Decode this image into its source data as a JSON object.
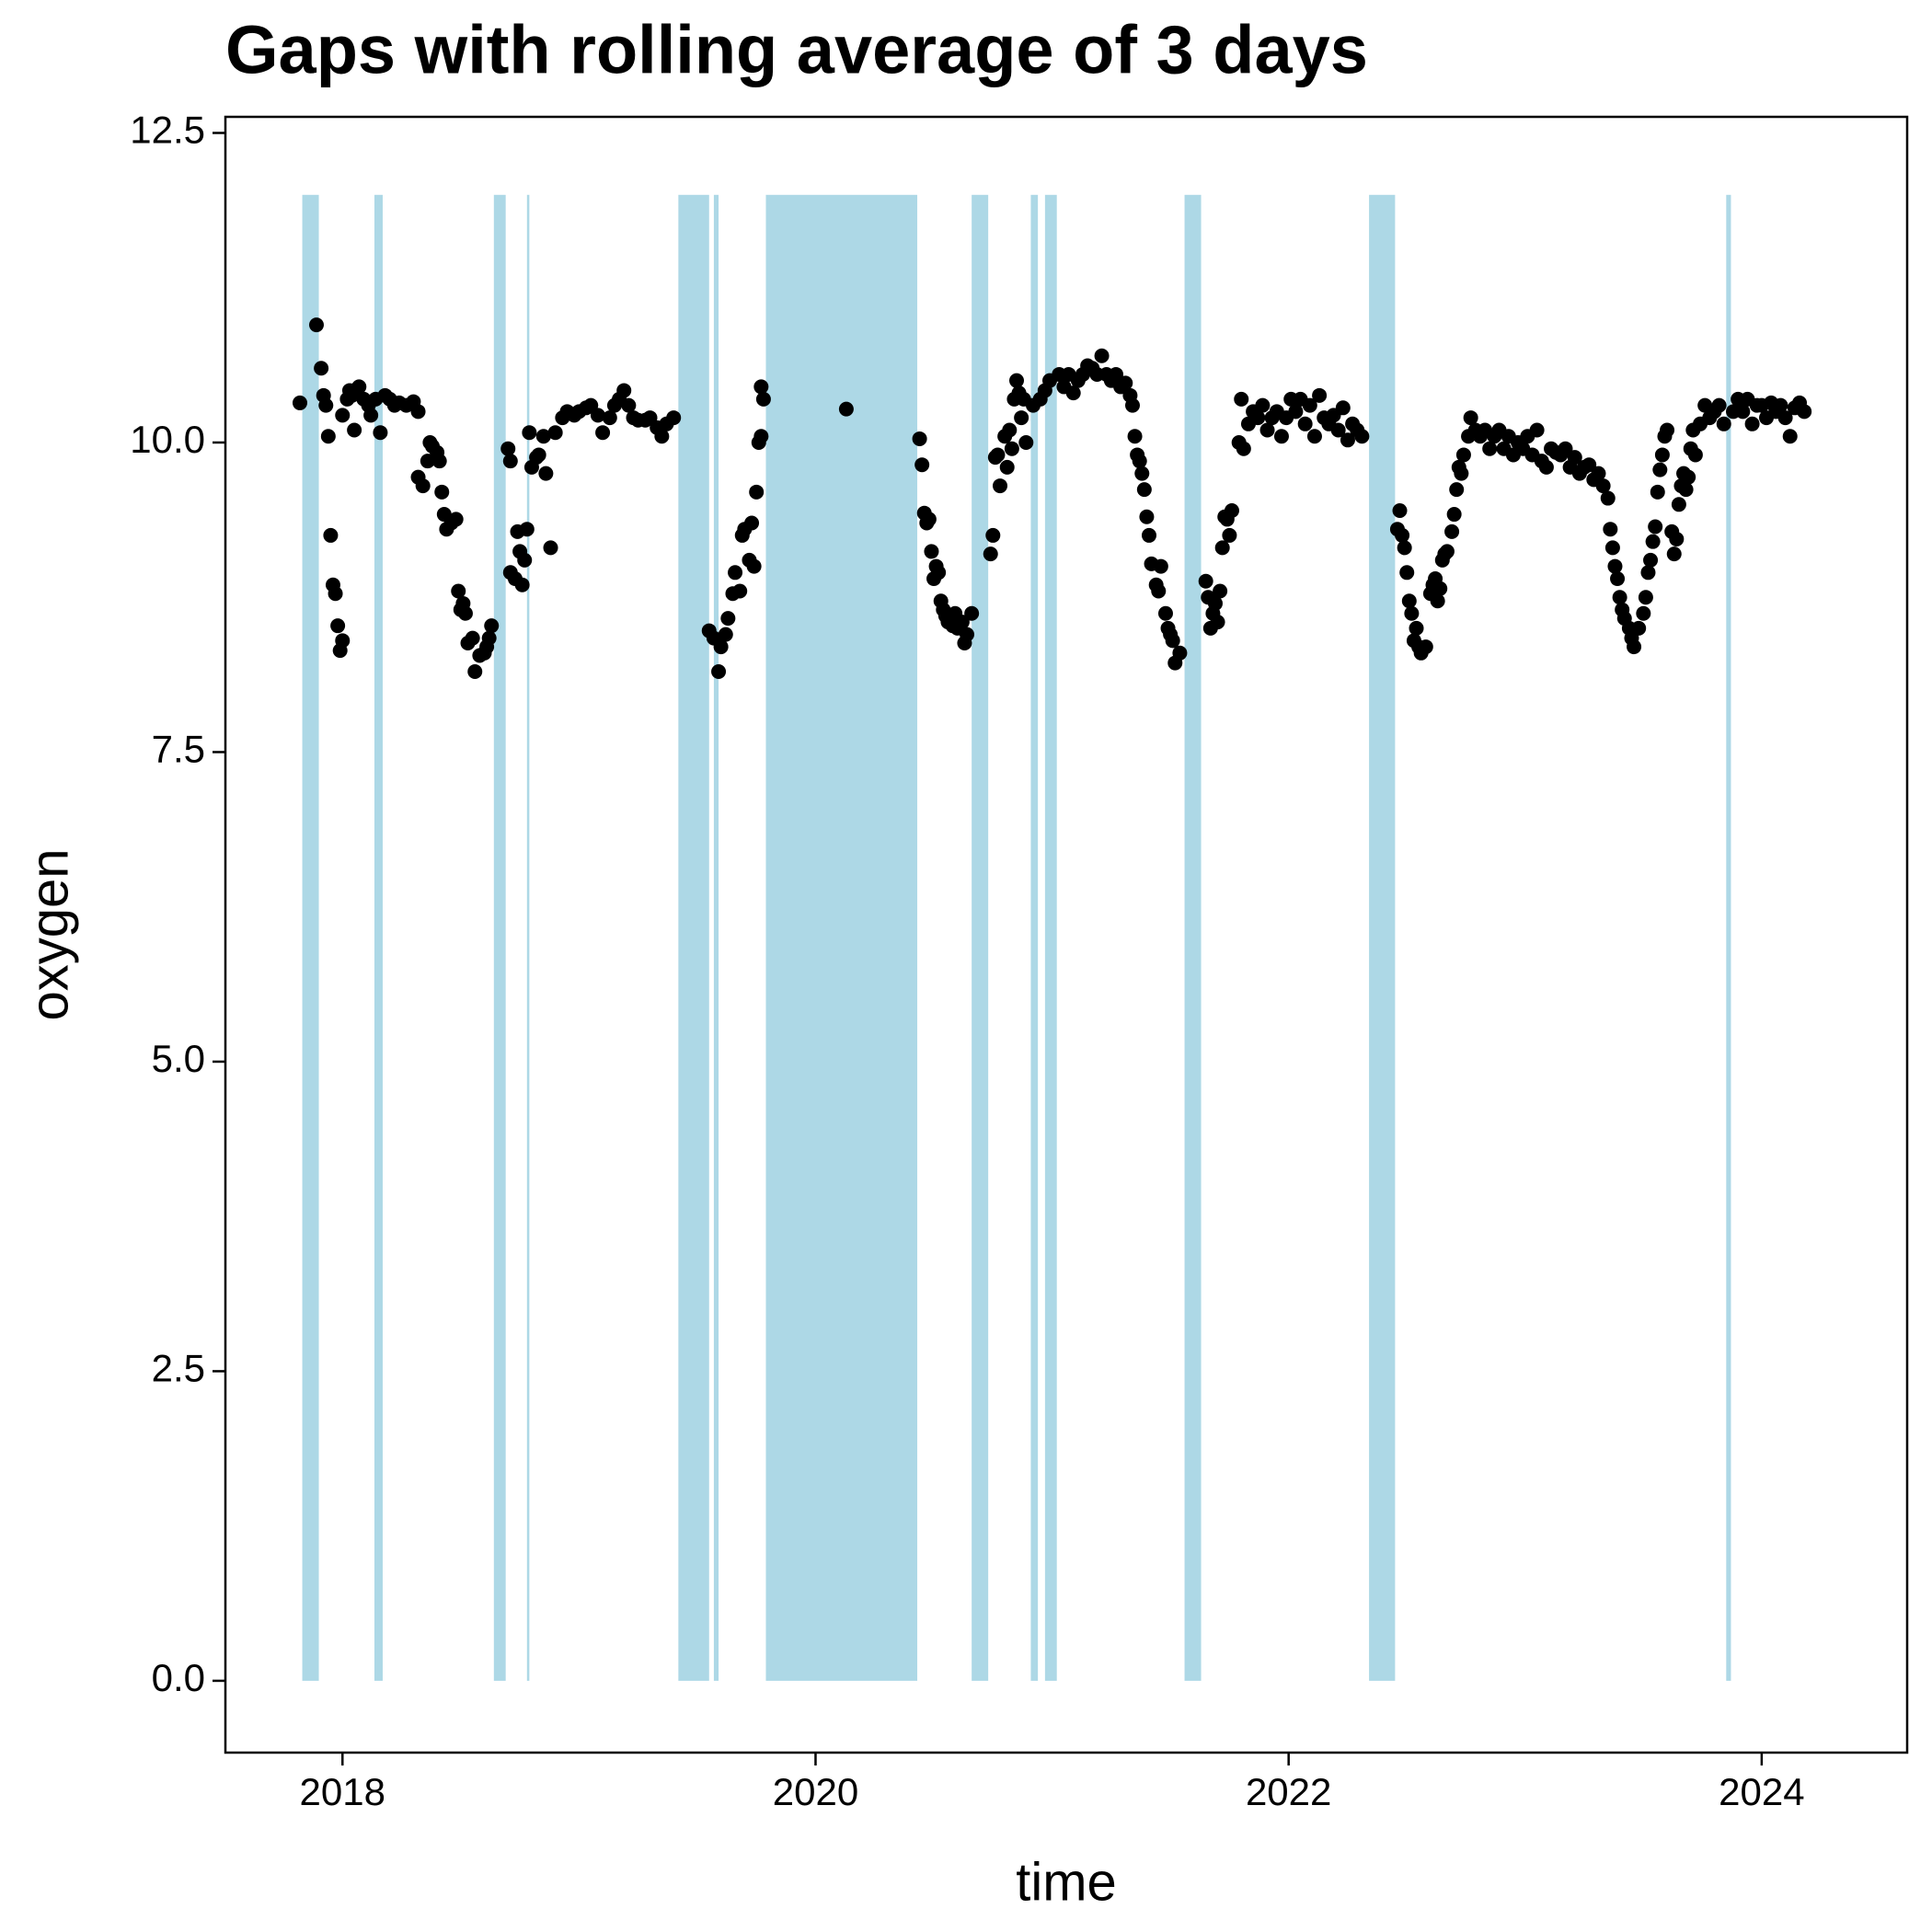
{
  "chart_data": {
    "type": "scatter",
    "title": "Gaps with rolling average of 3 days",
    "x_label": "time",
    "y_label": "oxygen",
    "xlim": [
      2017.505,
      2024.615
    ],
    "xticks": [
      2018,
      2020,
      2022,
      2024
    ],
    "ylim": [
      -0.58,
      12.63
    ],
    "yticks": [
      {
        "value": 0,
        "label": "0.0"
      },
      2.5,
      {
        "value": 5,
        "label": "5.0"
      },
      7.5,
      {
        "value": 10,
        "label": "10.0"
      },
      12.5
    ],
    "point_color": "#000000",
    "gap_color": "#add8e6",
    "gap_ylim": [
      0,
      12
    ],
    "gaps": [
      {
        "start": 2017.83,
        "end": 2017.9
      },
      {
        "start": 2018.135,
        "end": 2018.17
      },
      {
        "start": 2018.64,
        "end": 2018.69
      },
      {
        "start": 2018.78,
        "end": 2018.79
      },
      {
        "start": 2019.42,
        "end": 2019.55
      },
      {
        "start": 2019.57,
        "end": 2019.59
      },
      {
        "start": 2019.79,
        "end": 2020.43
      },
      {
        "start": 2020.66,
        "end": 2020.73
      },
      {
        "start": 2020.91,
        "end": 2020.94
      },
      {
        "start": 2020.97,
        "end": 2021.02
      },
      {
        "start": 2021.56,
        "end": 2021.63
      },
      {
        "start": 2022.34,
        "end": 2022.45
      },
      {
        "start": 2023.85,
        "end": 2023.87
      }
    ],
    "points": [
      [
        2017.82,
        10.32
      ],
      [
        2017.89,
        10.95
      ],
      [
        2017.91,
        10.6
      ],
      [
        2017.92,
        10.38
      ],
      [
        2017.93,
        10.3
      ],
      [
        2017.94,
        10.05
      ],
      [
        2017.95,
        9.25
      ],
      [
        2017.96,
        8.85
      ],
      [
        2017.97,
        8.78
      ],
      [
        2017.98,
        8.52
      ],
      [
        2017.99,
        8.32
      ],
      [
        2018.0,
        8.4
      ],
      [
        2018.0,
        10.22
      ],
      [
        2018.02,
        10.35
      ],
      [
        2018.03,
        10.42
      ],
      [
        2018.04,
        10.38
      ],
      [
        2018.05,
        10.1
      ],
      [
        2018.06,
        10.43
      ],
      [
        2018.07,
        10.45
      ],
      [
        2018.09,
        10.35
      ],
      [
        2018.11,
        10.3
      ],
      [
        2018.12,
        10.22
      ],
      [
        2018.14,
        10.35
      ],
      [
        2018.16,
        10.08
      ],
      [
        2018.18,
        10.38
      ],
      [
        2018.2,
        10.35
      ],
      [
        2018.22,
        10.3
      ],
      [
        2018.24,
        10.32
      ],
      [
        2018.27,
        10.3
      ],
      [
        2018.3,
        10.33
      ],
      [
        2018.32,
        10.25
      ],
      [
        2018.32,
        9.72
      ],
      [
        2018.34,
        9.65
      ],
      [
        2018.36,
        9.85
      ],
      [
        2018.37,
        10.0
      ],
      [
        2018.38,
        9.97
      ],
      [
        2018.4,
        9.92
      ],
      [
        2018.41,
        9.85
      ],
      [
        2018.42,
        9.6
      ],
      [
        2018.43,
        9.42
      ],
      [
        2018.44,
        9.3
      ],
      [
        2018.46,
        9.35
      ],
      [
        2018.48,
        9.38
      ],
      [
        2018.49,
        8.8
      ],
      [
        2018.5,
        8.65
      ],
      [
        2018.51,
        8.7
      ],
      [
        2018.52,
        8.62
      ],
      [
        2018.53,
        8.38
      ],
      [
        2018.55,
        8.42
      ],
      [
        2018.56,
        8.15
      ],
      [
        2018.58,
        8.28
      ],
      [
        2018.6,
        8.3
      ],
      [
        2018.61,
        8.35
      ],
      [
        2018.62,
        8.42
      ],
      [
        2018.63,
        8.52
      ],
      [
        2018.7,
        9.95
      ],
      [
        2018.71,
        9.85
      ],
      [
        2018.71,
        8.95
      ],
      [
        2018.73,
        8.9
      ],
      [
        2018.74,
        9.28
      ],
      [
        2018.75,
        9.12
      ],
      [
        2018.76,
        8.85
      ],
      [
        2018.77,
        9.05
      ],
      [
        2018.78,
        9.3
      ],
      [
        2018.79,
        10.08
      ],
      [
        2018.8,
        9.8
      ],
      [
        2018.82,
        9.88
      ],
      [
        2018.83,
        9.9
      ],
      [
        2018.85,
        10.05
      ],
      [
        2018.86,
        9.75
      ],
      [
        2018.88,
        9.15
      ],
      [
        2018.9,
        10.08
      ],
      [
        2018.93,
        10.2
      ],
      [
        2018.95,
        10.25
      ],
      [
        2018.98,
        10.22
      ],
      [
        2019.0,
        10.25
      ],
      [
        2019.03,
        10.28
      ],
      [
        2019.05,
        10.3
      ],
      [
        2019.08,
        10.22
      ],
      [
        2019.1,
        10.08
      ],
      [
        2019.13,
        10.2
      ],
      [
        2019.15,
        10.3
      ],
      [
        2019.17,
        10.35
      ],
      [
        2019.19,
        10.42
      ],
      [
        2019.21,
        10.3
      ],
      [
        2019.23,
        10.2
      ],
      [
        2019.25,
        10.18
      ],
      [
        2019.28,
        10.18
      ],
      [
        2019.3,
        10.2
      ],
      [
        2019.33,
        10.12
      ],
      [
        2019.35,
        10.05
      ],
      [
        2019.37,
        10.15
      ],
      [
        2019.4,
        10.2
      ],
      [
        2019.55,
        8.48
      ],
      [
        2019.57,
        8.42
      ],
      [
        2019.59,
        8.15
      ],
      [
        2019.6,
        8.35
      ],
      [
        2019.62,
        8.45
      ],
      [
        2019.63,
        8.58
      ],
      [
        2019.65,
        8.78
      ],
      [
        2019.66,
        8.95
      ],
      [
        2019.68,
        8.8
      ],
      [
        2019.69,
        9.25
      ],
      [
        2019.7,
        9.3
      ],
      [
        2019.72,
        9.05
      ],
      [
        2019.73,
        9.35
      ],
      [
        2019.74,
        9.0
      ],
      [
        2019.75,
        9.6
      ],
      [
        2019.76,
        10.0
      ],
      [
        2019.77,
        10.05
      ],
      [
        2019.77,
        10.45
      ],
      [
        2019.78,
        10.35
      ],
      [
        2020.13,
        10.27
      ],
      [
        2020.44,
        10.03
      ],
      [
        2020.45,
        9.82
      ],
      [
        2020.46,
        9.43
      ],
      [
        2020.47,
        9.35
      ],
      [
        2020.48,
        9.38
      ],
      [
        2020.49,
        9.12
      ],
      [
        2020.5,
        8.9
      ],
      [
        2020.51,
        9.0
      ],
      [
        2020.52,
        8.95
      ],
      [
        2020.53,
        8.72
      ],
      [
        2020.54,
        8.65
      ],
      [
        2020.55,
        8.6
      ],
      [
        2020.56,
        8.55
      ],
      [
        2020.58,
        8.52
      ],
      [
        2020.59,
        8.62
      ],
      [
        2020.6,
        8.5
      ],
      [
        2020.62,
        8.55
      ],
      [
        2020.63,
        8.38
      ],
      [
        2020.64,
        8.45
      ],
      [
        2020.66,
        8.62
      ],
      [
        2020.74,
        9.1
      ],
      [
        2020.75,
        9.25
      ],
      [
        2020.76,
        9.88
      ],
      [
        2020.77,
        9.9
      ],
      [
        2020.78,
        9.65
      ],
      [
        2020.8,
        10.05
      ],
      [
        2020.81,
        9.8
      ],
      [
        2020.82,
        10.1
      ],
      [
        2020.83,
        9.95
      ],
      [
        2020.84,
        10.35
      ],
      [
        2020.85,
        10.5
      ],
      [
        2020.86,
        10.4
      ],
      [
        2020.87,
        10.2
      ],
      [
        2020.88,
        10.35
      ],
      [
        2020.89,
        10.0
      ],
      [
        2020.92,
        10.3
      ],
      [
        2020.95,
        10.35
      ],
      [
        2020.97,
        10.42
      ],
      [
        2020.99,
        10.5
      ],
      [
        2021.03,
        10.55
      ],
      [
        2021.05,
        10.45
      ],
      [
        2021.07,
        10.55
      ],
      [
        2021.09,
        10.4
      ],
      [
        2021.11,
        10.5
      ],
      [
        2021.13,
        10.55
      ],
      [
        2021.15,
        10.62
      ],
      [
        2021.17,
        10.6
      ],
      [
        2021.19,
        10.55
      ],
      [
        2021.21,
        10.7
      ],
      [
        2021.23,
        10.55
      ],
      [
        2021.25,
        10.5
      ],
      [
        2021.27,
        10.55
      ],
      [
        2021.29,
        10.45
      ],
      [
        2021.31,
        10.48
      ],
      [
        2021.33,
        10.38
      ],
      [
        2021.34,
        10.3
      ],
      [
        2021.35,
        10.05
      ],
      [
        2021.36,
        9.9
      ],
      [
        2021.37,
        9.85
      ],
      [
        2021.38,
        9.75
      ],
      [
        2021.39,
        9.62
      ],
      [
        2021.4,
        9.4
      ],
      [
        2021.41,
        9.25
      ],
      [
        2021.42,
        9.02
      ],
      [
        2021.44,
        8.85
      ],
      [
        2021.45,
        8.8
      ],
      [
        2021.46,
        9.0
      ],
      [
        2021.48,
        8.62
      ],
      [
        2021.49,
        8.5
      ],
      [
        2021.5,
        8.45
      ],
      [
        2021.51,
        8.4
      ],
      [
        2021.52,
        8.22
      ],
      [
        2021.54,
        8.3
      ],
      [
        2021.65,
        8.88
      ],
      [
        2021.66,
        8.75
      ],
      [
        2021.67,
        8.5
      ],
      [
        2021.68,
        8.62
      ],
      [
        2021.69,
        8.7
      ],
      [
        2021.7,
        8.55
      ],
      [
        2021.71,
        8.8
      ],
      [
        2021.72,
        9.15
      ],
      [
        2021.73,
        9.4
      ],
      [
        2021.74,
        9.38
      ],
      [
        2021.75,
        9.25
      ],
      [
        2021.76,
        9.45
      ],
      [
        2021.79,
        10.0
      ],
      [
        2021.8,
        10.35
      ],
      [
        2021.81,
        9.95
      ],
      [
        2021.83,
        10.15
      ],
      [
        2021.85,
        10.25
      ],
      [
        2021.87,
        10.2
      ],
      [
        2021.89,
        10.3
      ],
      [
        2021.91,
        10.1
      ],
      [
        2021.93,
        10.2
      ],
      [
        2021.95,
        10.25
      ],
      [
        2021.97,
        10.05
      ],
      [
        2021.99,
        10.2
      ],
      [
        2022.01,
        10.35
      ],
      [
        2022.03,
        10.25
      ],
      [
        2022.05,
        10.35
      ],
      [
        2022.07,
        10.15
      ],
      [
        2022.09,
        10.3
      ],
      [
        2022.11,
        10.05
      ],
      [
        2022.13,
        10.38
      ],
      [
        2022.15,
        10.2
      ],
      [
        2022.17,
        10.15
      ],
      [
        2022.19,
        10.22
      ],
      [
        2022.21,
        10.1
      ],
      [
        2022.23,
        10.28
      ],
      [
        2022.25,
        10.02
      ],
      [
        2022.27,
        10.15
      ],
      [
        2022.29,
        10.1
      ],
      [
        2022.31,
        10.05
      ],
      [
        2022.46,
        9.3
      ],
      [
        2022.47,
        9.45
      ],
      [
        2022.48,
        9.25
      ],
      [
        2022.49,
        9.15
      ],
      [
        2022.5,
        8.95
      ],
      [
        2022.51,
        8.72
      ],
      [
        2022.52,
        8.62
      ],
      [
        2022.53,
        8.4
      ],
      [
        2022.54,
        8.5
      ],
      [
        2022.55,
        8.35
      ],
      [
        2022.56,
        8.3
      ],
      [
        2022.58,
        8.35
      ],
      [
        2022.6,
        8.78
      ],
      [
        2022.61,
        8.85
      ],
      [
        2022.62,
        8.9
      ],
      [
        2022.63,
        8.72
      ],
      [
        2022.64,
        8.82
      ],
      [
        2022.65,
        9.05
      ],
      [
        2022.66,
        9.1
      ],
      [
        2022.67,
        9.12
      ],
      [
        2022.69,
        9.28
      ],
      [
        2022.7,
        9.42
      ],
      [
        2022.71,
        9.62
      ],
      [
        2022.72,
        9.8
      ],
      [
        2022.73,
        9.75
      ],
      [
        2022.74,
        9.9
      ],
      [
        2022.76,
        10.05
      ],
      [
        2022.77,
        10.2
      ],
      [
        2022.79,
        10.1
      ],
      [
        2022.81,
        10.05
      ],
      [
        2022.83,
        10.1
      ],
      [
        2022.85,
        9.95
      ],
      [
        2022.87,
        10.05
      ],
      [
        2022.89,
        10.1
      ],
      [
        2022.91,
        9.95
      ],
      [
        2022.93,
        10.05
      ],
      [
        2022.95,
        9.9
      ],
      [
        2022.97,
        10.0
      ],
      [
        2022.99,
        9.95
      ],
      [
        2023.01,
        10.05
      ],
      [
        2023.03,
        9.9
      ],
      [
        2023.05,
        10.1
      ],
      [
        2023.07,
        9.85
      ],
      [
        2023.09,
        9.8
      ],
      [
        2023.11,
        9.95
      ],
      [
        2023.13,
        9.92
      ],
      [
        2023.15,
        9.9
      ],
      [
        2023.17,
        9.95
      ],
      [
        2023.19,
        9.8
      ],
      [
        2023.21,
        9.88
      ],
      [
        2023.23,
        9.75
      ],
      [
        2023.25,
        9.8
      ],
      [
        2023.27,
        9.82
      ],
      [
        2023.29,
        9.7
      ],
      [
        2023.31,
        9.75
      ],
      [
        2023.33,
        9.65
      ],
      [
        2023.35,
        9.55
      ],
      [
        2023.36,
        9.3
      ],
      [
        2023.37,
        9.15
      ],
      [
        2023.38,
        9.0
      ],
      [
        2023.39,
        8.9
      ],
      [
        2023.4,
        8.75
      ],
      [
        2023.41,
        8.65
      ],
      [
        2023.42,
        8.58
      ],
      [
        2023.44,
        8.5
      ],
      [
        2023.45,
        8.42
      ],
      [
        2023.46,
        8.35
      ],
      [
        2023.48,
        8.5
      ],
      [
        2023.5,
        8.62
      ],
      [
        2023.51,
        8.75
      ],
      [
        2023.52,
        8.95
      ],
      [
        2023.53,
        9.05
      ],
      [
        2023.54,
        9.2
      ],
      [
        2023.55,
        9.32
      ],
      [
        2023.56,
        9.6
      ],
      [
        2023.57,
        9.78
      ],
      [
        2023.58,
        9.9
      ],
      [
        2023.59,
        10.05
      ],
      [
        2023.6,
        10.1
      ],
      [
        2023.62,
        9.28
      ],
      [
        2023.63,
        9.1
      ],
      [
        2023.64,
        9.22
      ],
      [
        2023.65,
        9.5
      ],
      [
        2023.66,
        9.65
      ],
      [
        2023.67,
        9.75
      ],
      [
        2023.68,
        9.62
      ],
      [
        2023.69,
        9.72
      ],
      [
        2023.7,
        9.95
      ],
      [
        2023.71,
        10.1
      ],
      [
        2023.72,
        9.9
      ],
      [
        2023.74,
        10.15
      ],
      [
        2023.76,
        10.3
      ],
      [
        2023.78,
        10.2
      ],
      [
        2023.8,
        10.25
      ],
      [
        2023.82,
        10.3
      ],
      [
        2023.84,
        10.15
      ],
      [
        2023.88,
        10.25
      ],
      [
        2023.9,
        10.35
      ],
      [
        2023.92,
        10.25
      ],
      [
        2023.94,
        10.35
      ],
      [
        2023.96,
        10.15
      ],
      [
        2023.98,
        10.3
      ],
      [
        2024.0,
        10.3
      ],
      [
        2024.02,
        10.2
      ],
      [
        2024.04,
        10.32
      ],
      [
        2024.06,
        10.25
      ],
      [
        2024.08,
        10.3
      ],
      [
        2024.1,
        10.2
      ],
      [
        2024.12,
        10.05
      ],
      [
        2024.14,
        10.28
      ],
      [
        2024.16,
        10.32
      ],
      [
        2024.18,
        10.25
      ]
    ]
  }
}
